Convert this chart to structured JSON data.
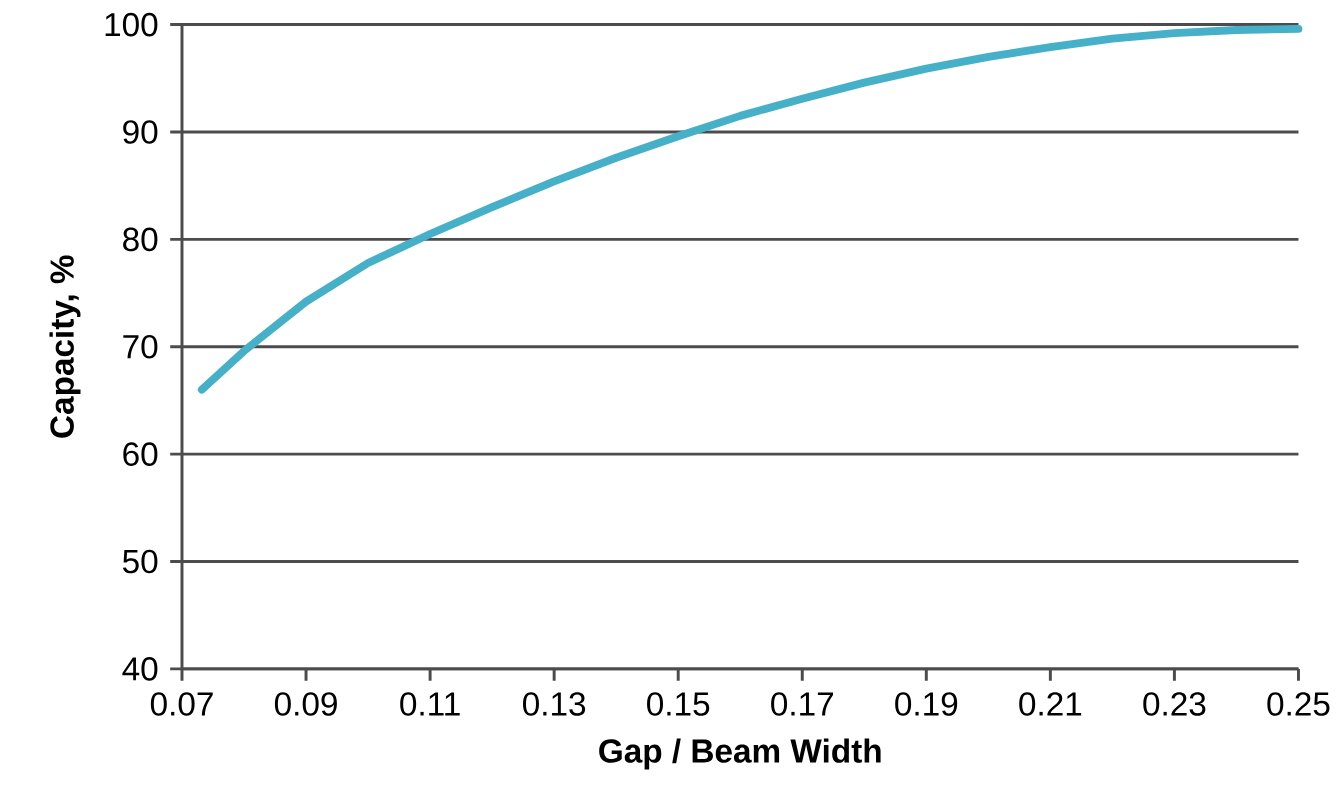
{
  "chart_data": {
    "type": "line",
    "xlabel": "Gap / Beam Width",
    "ylabel": "Capacity, %",
    "x": [
      0.0732,
      0.08,
      0.09,
      0.1,
      0.11,
      0.12,
      0.13,
      0.14,
      0.15,
      0.16,
      0.17,
      0.18,
      0.19,
      0.2,
      0.21,
      0.22,
      0.23,
      0.24,
      0.25
    ],
    "series": [
      {
        "color": "#45b0c8",
        "values": [
          66,
          69.6,
          74.2,
          77.8,
          80.5,
          83,
          85.4,
          87.6,
          89.6,
          91.5,
          93.1,
          94.6,
          95.9,
          97,
          97.9,
          98.7,
          99.2,
          99.5,
          99.6
        ]
      }
    ],
    "xlim": [
      0.07,
      0.25
    ],
    "xticks": [
      0.07,
      0.09,
      0.11,
      0.13,
      0.15,
      0.17,
      0.19,
      0.21,
      0.23,
      0.25
    ],
    "ylim": [
      40,
      100
    ],
    "yticks": [
      40,
      50,
      60,
      70,
      80,
      90,
      100
    ],
    "grid": "y",
    "marker": "none",
    "line_style": "solid"
  }
}
